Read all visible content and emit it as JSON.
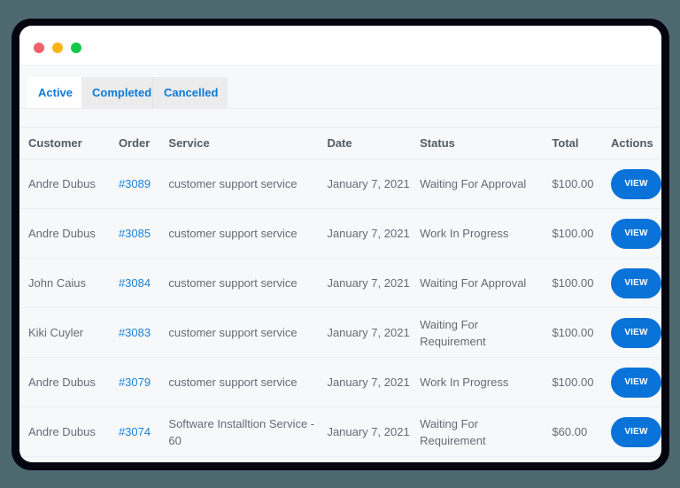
{
  "window": {
    "controls": [
      "close",
      "minimize",
      "maximize"
    ]
  },
  "tabs": [
    {
      "label": "Active",
      "selected": true
    },
    {
      "label": "Completed",
      "selected": false
    },
    {
      "label": "Cancelled",
      "selected": false
    }
  ],
  "table": {
    "headers": {
      "customer": "Customer",
      "order": "Order",
      "service": "Service",
      "date": "Date",
      "status": "Status",
      "total": "Total",
      "actions": "Actions"
    },
    "rows": [
      {
        "customer": "Andre Dubus",
        "order": "#3089",
        "service": "customer support service",
        "date": "January 7, 2021",
        "status": "Waiting For Approval",
        "total": "$100.00",
        "action": "VIEW"
      },
      {
        "customer": "Andre Dubus",
        "order": "#3085",
        "service": "customer support service",
        "date": "January 7, 2021",
        "status": "Work In Progress",
        "total": "$100.00",
        "action": "VIEW"
      },
      {
        "customer": "John Caius",
        "order": "#3084",
        "service": "customer support service",
        "date": "January 7, 2021",
        "status": "Waiting For Approval",
        "total": "$100.00",
        "action": "VIEW"
      },
      {
        "customer": "Kiki Cuyler",
        "order": "#3083",
        "service": "customer support service",
        "date": "January 7, 2021",
        "status": "Waiting For Requirement",
        "total": "$100.00",
        "action": "VIEW"
      },
      {
        "customer": "Andre Dubus",
        "order": "#3079",
        "service": "customer support service",
        "date": "January 7, 2021",
        "status": "Work In Progress",
        "total": "$100.00",
        "action": "VIEW"
      },
      {
        "customer": "Andre Dubus",
        "order": "#3074",
        "service": "Software Installtion Service - 60",
        "date": "January 7, 2021",
        "status": "Waiting For Requirement",
        "total": "$60.00",
        "action": "VIEW"
      }
    ]
  },
  "colors": {
    "accent": "#0a73d9",
    "link": "#1a82d8",
    "background": "#4e6870",
    "frame": "#05050f"
  }
}
